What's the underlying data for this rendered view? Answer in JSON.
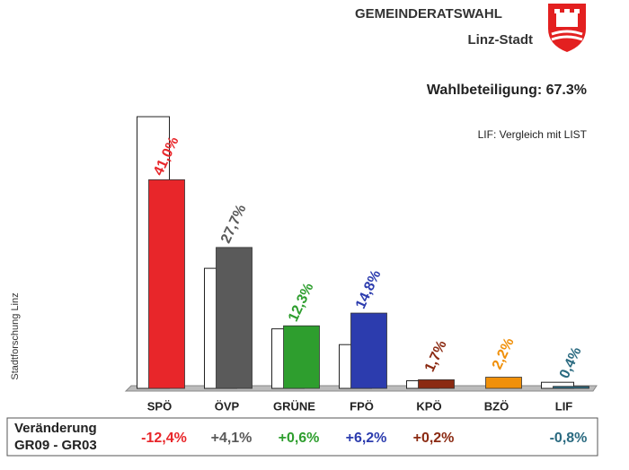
{
  "chart_data": {
    "type": "bar",
    "title": "GEMEINDERATSWAHL",
    "subtitle": "Linz-Stadt",
    "turnout": "Wahlbeteiligung: 67.3%",
    "note": "LIF: Vergleich mit LIST",
    "source": "Stadtforschung Linz",
    "categories": [
      "SPÖ",
      "ÖVP",
      "GRÜNE",
      "FPÖ",
      "KPÖ",
      "BZÖ",
      "LIF"
    ],
    "ylim": [
      0,
      55
    ],
    "series": [
      {
        "color": "#ffffff",
        "values": [
          53.4,
          23.6,
          11.7,
          8.6,
          1.5,
          null,
          1.2
        ]
      },
      {
        "colors": [
          "#e8262a",
          "#5a5a5a",
          "#2e9e2e",
          "#2c3cae",
          "#8b2a12",
          "#f0900a",
          "#2a6a80"
        ],
        "values": [
          41.0,
          27.7,
          12.3,
          14.8,
          1.7,
          2.2,
          0.4
        ],
        "value_labels": [
          "41,0%",
          "27,7%",
          "12,3%",
          "14,8%",
          "1,7%",
          "2,2%",
          "0,4%"
        ]
      }
    ],
    "change_title": [
      "Veränderung",
      "GR09 - GR03"
    ],
    "changes": {
      "values": [
        -12.4,
        4.1,
        0.6,
        6.2,
        0.2,
        null,
        -0.8
      ],
      "value_labels": [
        "-12,4%",
        "+4,1%",
        "+0,6%",
        "+6,2%",
        "+0,2%",
        null,
        "-0,8%"
      ]
    }
  }
}
